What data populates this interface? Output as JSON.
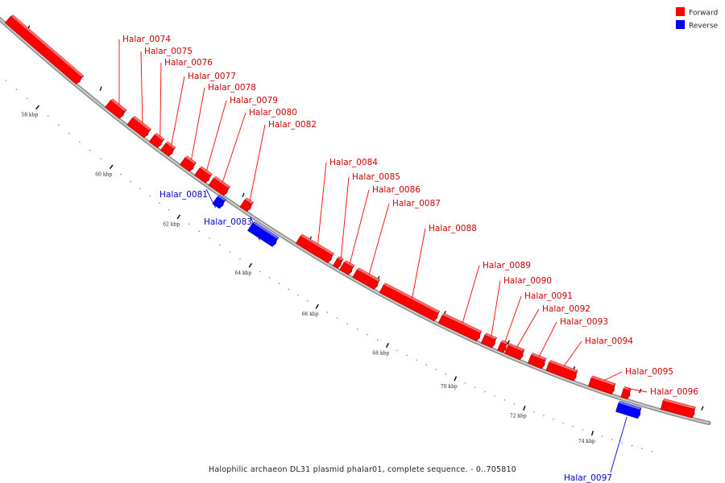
{
  "caption": "Halophilic archaeon DL31 plasmid phalar01, complete sequence. - 0..705810",
  "legend": [
    {
      "label": "Forward",
      "color": "#ff0000"
    },
    {
      "label": "Reverse",
      "color": "#0000ff"
    }
  ],
  "ruler": {
    "labels": [
      "58 kbp",
      "60 kbp",
      "62 kbp",
      "64 kbp",
      "66 kbp",
      "68 kbp",
      "70 kbp",
      "72 kbp",
      "74 kbp"
    ]
  },
  "genes": [
    {
      "name": "",
      "strand": "forward"
    },
    {
      "name": "Halar_0074",
      "strand": "forward"
    },
    {
      "name": "Halar_0075",
      "strand": "forward"
    },
    {
      "name": "Halar_0076",
      "strand": "forward"
    },
    {
      "name": "Halar_0077",
      "strand": "forward"
    },
    {
      "name": "Halar_0078",
      "strand": "forward"
    },
    {
      "name": "Halar_0079",
      "strand": "forward"
    },
    {
      "name": "Halar_0080",
      "strand": "forward"
    },
    {
      "name": "Halar_0082",
      "strand": "forward"
    },
    {
      "name": "Halar_0081",
      "strand": "reverse"
    },
    {
      "name": "Halar_0083",
      "strand": "reverse"
    },
    {
      "name": "Halar_0084",
      "strand": "forward"
    },
    {
      "name": "Halar_0085",
      "strand": "forward"
    },
    {
      "name": "Halar_0086",
      "strand": "forward"
    },
    {
      "name": "Halar_0087",
      "strand": "forward"
    },
    {
      "name": "Halar_0088",
      "strand": "forward"
    },
    {
      "name": "Halar_0089",
      "strand": "forward"
    },
    {
      "name": "Halar_0090",
      "strand": "forward"
    },
    {
      "name": "Halar_0091",
      "strand": "forward"
    },
    {
      "name": "Halar_0092",
      "strand": "forward"
    },
    {
      "name": "Halar_0093",
      "strand": "forward"
    },
    {
      "name": "Halar_0094",
      "strand": "forward"
    },
    {
      "name": "Halar_0095",
      "strand": "forward"
    },
    {
      "name": "Halar_0096",
      "strand": "forward"
    },
    {
      "name": "Halar_0097",
      "strand": "reverse"
    },
    {
      "name": "",
      "strand": "forward"
    }
  ]
}
